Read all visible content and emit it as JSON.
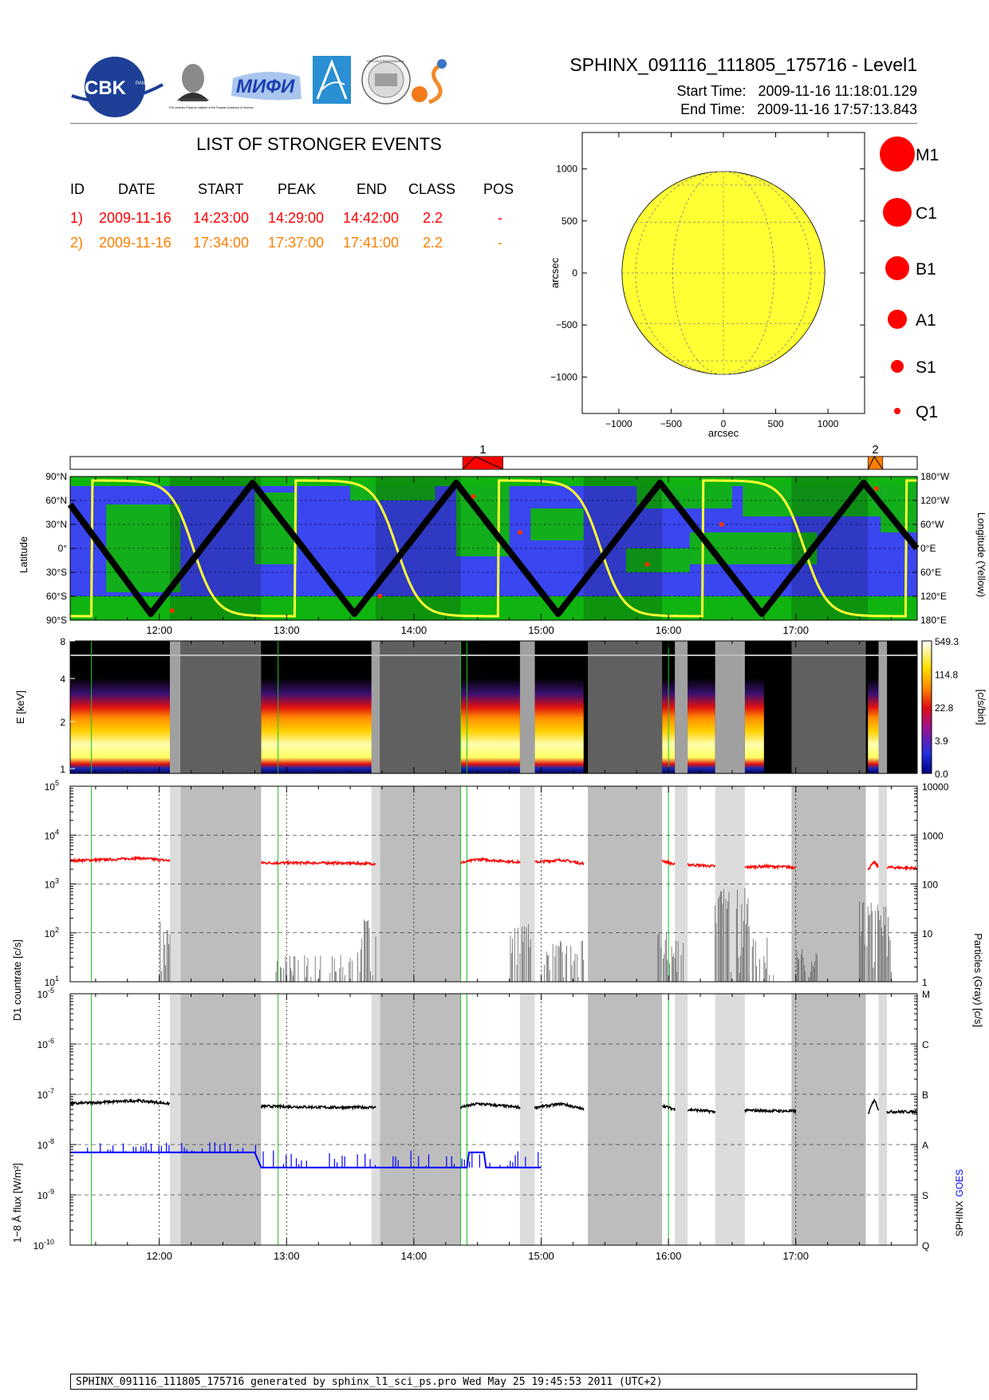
{
  "header": {
    "title": "SPHINX_091116_111805_175716 - Level1",
    "start_label": "Start Time:",
    "start_value": "2009-11-16   11:18:01.129",
    "end_label": "End Time:",
    "end_value": "2009-11-16   17:57:13.843",
    "logo_cbk": "CBK",
    "logo_cbk_sub": "PAN",
    "logo_lebedev_caption": "P.N.Lebedev Physical Institute of the Russian Academy of Science",
    "logo_mifi": "МИФИ",
    "logo_univ_text": "SPECOLA PANORAMICA"
  },
  "events": {
    "title": "LIST OF STRONGER EVENTS",
    "columns": [
      "ID",
      "DATE",
      "START",
      "PEAK",
      "END",
      "CLASS",
      "POS"
    ],
    "rows": [
      {
        "id": "1)",
        "date": "2009-11-16",
        "start": "14:23:00",
        "peak": "14:29:00",
        "end": "14:42:00",
        "class": "2.2",
        "pos": "-",
        "color": "#ff0000"
      },
      {
        "id": "2)",
        "date": "2009-11-16",
        "start": "17:34:00",
        "peak": "17:37:00",
        "end": "17:41:00",
        "class": "2.2",
        "pos": "-",
        "color": "#ff7f00"
      }
    ]
  },
  "legend_classes": [
    "M1",
    "C1",
    "B1",
    "A1",
    "S1",
    "Q1"
  ],
  "footer": "SPHINX_091116_111805_175716 generated by sphinx_l1_sci_ps.pro Wed May 25 19:45:53 2011 (UTC+2)",
  "colors": {
    "event1": "#ff0000",
    "event2": "#ff7f00",
    "sun": "#ffff33",
    "map_blue": "#3a46f0",
    "map_green": "#10b410",
    "sphinx_curve": "#000000",
    "goes_curve": "#0000ff",
    "particles": "#606060",
    "d1_curve": "#ff0000",
    "gap_dark": "#bdbdbd",
    "gap_light": "#dcdcdc"
  },
  "chart_data": [
    {
      "type": "scatter",
      "id": "sun-map",
      "xlabel": "arcsec",
      "ylabel": "arcsec",
      "xticks": [
        "−1000",
        "−500",
        "0",
        "500",
        "1000"
      ],
      "yticks": [
        "1000",
        "500",
        "0",
        "−500",
        "−1000"
      ],
      "xlim": [
        -1350,
        1350
      ],
      "ylim": [
        -1350,
        1350
      ],
      "sun_radius_arcsec": 970,
      "grid": true
    },
    {
      "type": "line",
      "id": "event-bar",
      "events": [
        {
          "label": "1",
          "start": "14:23",
          "peak": "14:29",
          "end": "14:42",
          "color": "#ff0000"
        },
        {
          "label": "2",
          "start": "17:34",
          "peak": "17:37",
          "end": "17:41",
          "color": "#ff7f00"
        }
      ]
    },
    {
      "type": "line",
      "id": "orbit",
      "ylabel": "Latitude",
      "y2label": "Longitude (Yellow)",
      "yticks": [
        "90°N",
        "60°N",
        "30°N",
        "0°",
        "30°S",
        "60°S",
        "90°S"
      ],
      "y2ticks": [
        "180°W",
        "120°W",
        "60°W",
        "0°E",
        "60°E",
        "120°E",
        "180°E"
      ],
      "xticks": [
        "12:00",
        "13:00",
        "14:00",
        "15:00",
        "16:00",
        "17:00"
      ],
      "latitude_turning_points": [
        {
          "t": "11:18",
          "lat": 55
        },
        {
          "t": "11:56",
          "lat": -82
        },
        {
          "t": "12:44",
          "lat": 82
        },
        {
          "t": "13:32",
          "lat": -82
        },
        {
          "t": "14:20",
          "lat": 82
        },
        {
          "t": "15:08",
          "lat": -82
        },
        {
          "t": "15:56",
          "lat": 82
        },
        {
          "t": "16:44",
          "lat": -82
        },
        {
          "t": "17:32",
          "lat": 82
        },
        {
          "t": "17:57",
          "lat": 0
        }
      ]
    },
    {
      "type": "heatmap",
      "id": "spectrogram",
      "ylabel": "E [keV]",
      "yticks": [
        "8",
        "4",
        "2",
        "1"
      ],
      "colorbar_label": "[c/s/bin]",
      "colorbar_ticks": [
        "549.3",
        "114.8",
        "22.8",
        "3.9",
        "0.0"
      ],
      "data_windows": [
        [
          "11:18",
          "12:05"
        ],
        [
          "12:48",
          "13:42"
        ],
        [
          "14:22",
          "14:50"
        ],
        [
          "14:57",
          "15:20"
        ],
        [
          "15:57",
          "16:03"
        ],
        [
          "16:09",
          "16:22"
        ],
        [
          "16:36",
          "16:45"
        ],
        [
          "17:34",
          "17:39"
        ]
      ]
    },
    {
      "type": "line",
      "id": "countrate",
      "ylabel": "D1 countrate [c/s]",
      "y2label": "Particles (Gray) [c/s]",
      "yticks": [
        "10^5",
        "10^4",
        "10^3",
        "10^2",
        "10^1"
      ],
      "y2ticks": [
        "10000",
        "1000",
        "100",
        "10",
        "1"
      ],
      "ylim": [
        10,
        100000
      ],
      "series": [
        {
          "color": "#ff0000",
          "segments": [
            {
              "t": [
                "11:18",
                "11:40",
                "11:50",
                "12:05"
              ],
              "v": [
                3000,
                3200,
                3400,
                3000
              ]
            },
            {
              "t": [
                "12:48",
                "13:20",
                "13:42"
              ],
              "v": [
                2700,
                2700,
                2600
              ]
            },
            {
              "t": [
                "14:22",
                "14:30",
                "14:50"
              ],
              "v": [
                2700,
                3200,
                2800
              ]
            },
            {
              "t": [
                "14:57",
                "15:10",
                "15:20"
              ],
              "v": [
                2800,
                3100,
                2600
              ]
            },
            {
              "t": [
                "15:57",
                "16:03"
              ],
              "v": [
                3000,
                2500
              ]
            },
            {
              "t": [
                "16:09",
                "16:22"
              ],
              "v": [
                2500,
                2300
              ]
            },
            {
              "t": [
                "16:36",
                "16:45"
              ],
              "v": [
                2200,
                2300
              ]
            },
            {
              "t": [
                "16:45",
                "17:00"
              ],
              "v": [
                2300,
                2200
              ]
            },
            {
              "t": [
                "17:34",
                "17:37",
                "17:39"
              ],
              "v": [
                2000,
                2800,
                2200
              ]
            },
            {
              "t": [
                "17:43",
                "17:57"
              ],
              "v": [
                2200,
                2100
              ]
            }
          ]
        }
      ]
    },
    {
      "type": "line",
      "id": "flux",
      "ylabel": "1−8 Å flux [W/m²]",
      "y2label_sphinx": "SPHINX",
      "y2label_goes": "GOES",
      "yticks": [
        "10^-5",
        "10^-6",
        "10^-7",
        "10^-8",
        "10^-9",
        "10^-10"
      ],
      "y2ticks": [
        "M",
        "C",
        "B",
        "A",
        "S",
        "Q"
      ],
      "xticks": [
        "12:00",
        "13:00",
        "14:00",
        "15:00",
        "16:00",
        "17:00"
      ],
      "ylim": [
        1e-10,
        1e-05
      ],
      "series": [
        {
          "color": "#000000",
          "segments": [
            {
              "t": [
                "11:18",
                "11:50",
                "12:05"
              ],
              "v": [
                6.5e-08,
                7.5e-08,
                6.5e-08
              ]
            },
            {
              "t": [
                "12:48",
                "13:20",
                "13:42"
              ],
              "v": [
                5.8e-08,
                5.5e-08,
                5.5e-08
              ]
            },
            {
              "t": [
                "14:22",
                "14:30",
                "14:50"
              ],
              "v": [
                5.5e-08,
                6.5e-08,
                5.5e-08
              ]
            },
            {
              "t": [
                "14:57",
                "15:10",
                "15:20"
              ],
              "v": [
                5.5e-08,
                6.5e-08,
                5e-08
              ]
            },
            {
              "t": [
                "15:57",
                "16:03"
              ],
              "v": [
                6e-08,
                5e-08
              ]
            },
            {
              "t": [
                "16:09",
                "16:22"
              ],
              "v": [
                5e-08,
                4.5e-08
              ]
            },
            {
              "t": [
                "16:36",
                "17:00"
              ],
              "v": [
                4.8e-08,
                4.6e-08
              ]
            },
            {
              "t": [
                "17:34",
                "17:37",
                "17:39"
              ],
              "v": [
                4e-08,
                8e-08,
                5e-08
              ]
            },
            {
              "t": [
                "17:43",
                "17:57"
              ],
              "v": [
                4.5e-08,
                4.5e-08
              ]
            }
          ]
        },
        {
          "color": "#0000ff",
          "segments": [
            {
              "t": [
                "11:18",
                "12:45",
                "12:48",
                "14:00",
                "14:25",
                "14:26",
                "14:33",
                "14:34",
                "15:00"
              ],
              "v": [
                7e-09,
                7e-09,
                3.5e-09,
                3.5e-09,
                3.5e-09,
                7e-09,
                7e-09,
                3.5e-09,
                3.5e-09
              ]
            }
          ]
        }
      ]
    }
  ]
}
